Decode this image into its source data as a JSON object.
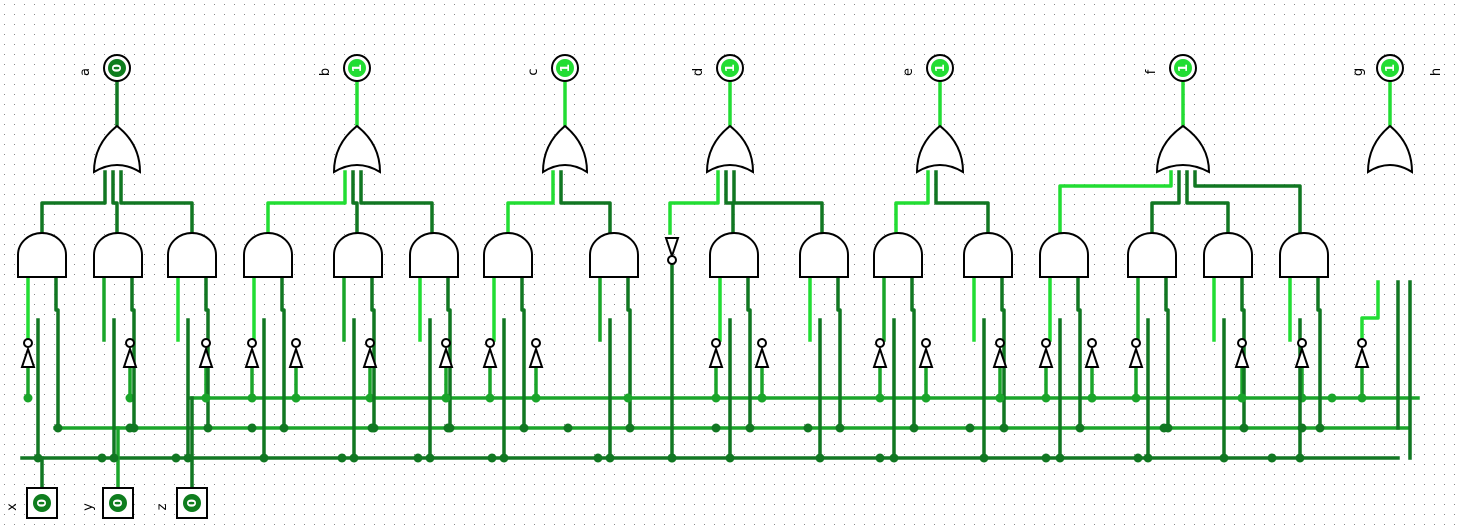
{
  "circuit": {
    "inputs": [
      {
        "label": "x",
        "value": "0"
      },
      {
        "label": "y",
        "value": "0"
      },
      {
        "label": "z",
        "value": "0"
      }
    ],
    "outputs": [
      {
        "label": "a",
        "value": "0"
      },
      {
        "label": "b",
        "value": "1"
      },
      {
        "label": "c",
        "value": "1"
      },
      {
        "label": "d",
        "value": "1"
      },
      {
        "label": "e",
        "value": "1"
      },
      {
        "label": "f",
        "value": "1"
      },
      {
        "label": "g",
        "value": "1"
      },
      {
        "label": "h",
        "value": ""
      }
    ],
    "gate_groups": [
      {
        "output": "a",
        "or_inputs": 3,
        "and_gates": 3
      },
      {
        "output": "b",
        "or_inputs": 3,
        "and_gates": 3
      },
      {
        "output": "c",
        "or_inputs": 2,
        "and_gates": 2
      },
      {
        "output": "d",
        "or_inputs": 3,
        "and_gates": 2,
        "has_not_on_branch": true
      },
      {
        "output": "e",
        "or_inputs": 2,
        "and_gates": 2
      },
      {
        "output": "f",
        "or_inputs": 4,
        "and_gates": 4
      },
      {
        "output": "g",
        "or_inputs": 3,
        "and_gates": 0,
        "or_fed_directly": true
      }
    ]
  },
  "colors": {
    "wire_high": "#22dd33",
    "wire_low": "#117722",
    "wire_mid": "#1aa52a",
    "gate_stroke": "#000000",
    "grid_dot": "#8a8a8a",
    "pin_fill_off": "#0e7d1e",
    "pin_fill_on": "#22dd33",
    "pin_text": "#ffffff"
  }
}
